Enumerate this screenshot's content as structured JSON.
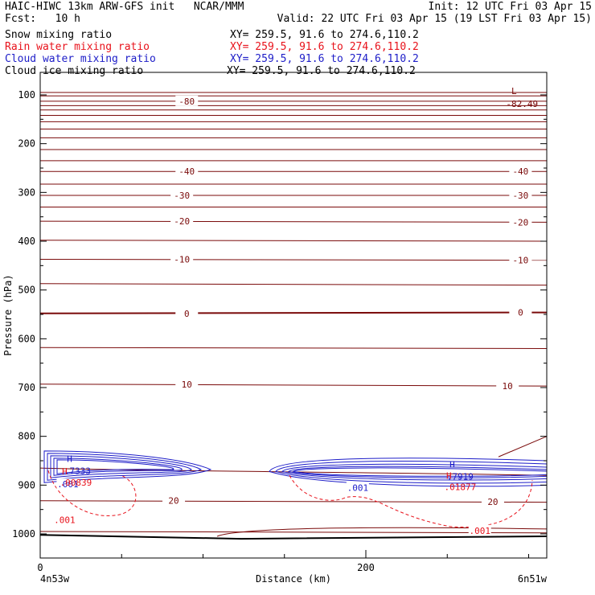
{
  "header": {
    "model": "HAIC-HIWC 13km ARW-GFS init",
    "org": "NCAR/MMM",
    "fcst": "Fcst:   10 h",
    "init": "Init: 12 UTC Fri 03 Apr 15",
    "valid": "Valid: 22 UTC Fri 03 Apr 15 (19 LST Fri 03 Apr 15)"
  },
  "variables": [
    {
      "name": "Snow mixing ratio",
      "xy": "XY= 259.5, 91.6 to 274.6,110.2",
      "color": "#000000"
    },
    {
      "name": "Rain water mixing ratio",
      "xy": "XY= 259.5, 91.6 to 274.6,110.2",
      "color": "#e8121b"
    },
    {
      "name": "Cloud water mixing ratio",
      "xy": "XY= 259.5, 91.6 to 274.6,110.2",
      "color": "#1d1dc8"
    },
    {
      "name": "Cloud ice mixing ratio",
      "xy": "XY= 259.5, 91.6 to 274.6,110.2",
      "color": "#000000"
    }
  ],
  "chart_data": {
    "type": "contour-cross-section",
    "ylabel": "Pressure (hPa)",
    "xlabel": "Distance (km)",
    "x_ticks": [
      "0",
      "200"
    ],
    "x_left_label": "4n53w",
    "x_right_label": "6n51w",
    "ylim": [
      50,
      1050
    ],
    "xlim": [
      0,
      310
    ],
    "y_ticks": [
      100,
      200,
      300,
      400,
      500,
      600,
      700,
      800,
      900,
      1000
    ],
    "temperature_isotherms": {
      "color": "#7a0a0a",
      "levels_labeled": [
        "-80",
        "-40",
        "-30",
        "-20",
        "-10",
        "0",
        "10",
        "20"
      ],
      "labels": [
        {
          "text": "-80",
          "x": 90,
          "p": 113
        },
        {
          "text": "-40",
          "x": 90,
          "p": 257
        },
        {
          "text": "-40",
          "x": 295,
          "p": 257
        },
        {
          "text": "-30",
          "x": 87,
          "p": 306
        },
        {
          "text": "-30",
          "x": 295,
          "p": 306
        },
        {
          "text": "-20",
          "x": 87,
          "p": 359
        },
        {
          "text": "-20",
          "x": 295,
          "p": 361
        },
        {
          "text": "-10",
          "x": 87,
          "p": 437
        },
        {
          "text": "-10",
          "x": 295,
          "p": 439
        },
        {
          "text": "0",
          "x": 90,
          "p": 548
        },
        {
          "text": "0",
          "x": 295,
          "p": 546
        },
        {
          "text": "10",
          "x": 90,
          "p": 693
        },
        {
          "text": "10",
          "x": 287,
          "p": 697
        },
        {
          "text": "20",
          "x": 82,
          "p": 932
        },
        {
          "text": "20",
          "x": 278,
          "p": 934
        }
      ],
      "min_marker": {
        "text": "L",
        "value": "-82.49",
        "x": 290,
        "p": 92
      }
    },
    "cloud_water": {
      "color": "#1d1dc8",
      "labels": [
        {
          "text": ".001",
          "x": 17,
          "p": 898
        },
        {
          "text": ".001",
          "x": 195,
          "p": 905
        }
      ],
      "maxima": [
        {
          "text": "H",
          "value": ".7333",
          "x": 20,
          "p": 862
        },
        {
          "text": "H",
          "value": ".7919",
          "x": 255,
          "p": 874
        }
      ]
    },
    "rain_water": {
      "color": "#e8121b",
      "labels": [
        {
          "text": ".001",
          "x": 15,
          "p": 971
        },
        {
          "text": ".001",
          "x": 270,
          "p": 993
        }
      ],
      "maxima": [
        {
          "text": "H",
          "value": ".00839",
          "x": 18,
          "p": 881
        },
        {
          "text": "H",
          "value": ".01877",
          "x": 254,
          "p": 890
        }
      ]
    }
  }
}
